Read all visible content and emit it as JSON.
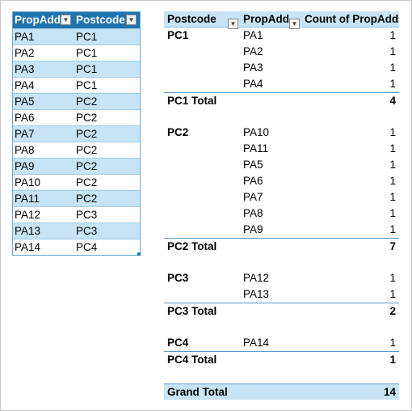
{
  "source_table": {
    "headers": [
      "PropAdd",
      "Postcode"
    ],
    "rows": [
      [
        "PA1",
        "PC1"
      ],
      [
        "PA2",
        "PC1"
      ],
      [
        "PA3",
        "PC1"
      ],
      [
        "PA4",
        "PC1"
      ],
      [
        "PA5",
        "PC2"
      ],
      [
        "PA6",
        "PC2"
      ],
      [
        "PA7",
        "PC2"
      ],
      [
        "PA8",
        "PC2"
      ],
      [
        "PA9",
        "PC2"
      ],
      [
        "PA10",
        "PC2"
      ],
      [
        "PA11",
        "PC2"
      ],
      [
        "PA12",
        "PC3"
      ],
      [
        "PA13",
        "PC3"
      ],
      [
        "PA14",
        "PC4"
      ]
    ]
  },
  "pivot": {
    "headers": {
      "postcode": "Postcode",
      "propadd": "PropAdd",
      "count": "Count of PropAdd"
    },
    "groups": [
      {
        "postcode": "PC1",
        "items": [
          {
            "propadd": "PA1",
            "count": "1"
          },
          {
            "propadd": "PA2",
            "count": "1"
          },
          {
            "propadd": "PA3",
            "count": "1"
          },
          {
            "propadd": "PA4",
            "count": "1"
          }
        ],
        "total_label": "PC1 Total",
        "total": "4"
      },
      {
        "postcode": "PC2",
        "items": [
          {
            "propadd": "PA10",
            "count": "1"
          },
          {
            "propadd": "PA11",
            "count": "1"
          },
          {
            "propadd": "PA5",
            "count": "1"
          },
          {
            "propadd": "PA6",
            "count": "1"
          },
          {
            "propadd": "PA7",
            "count": "1"
          },
          {
            "propadd": "PA8",
            "count": "1"
          },
          {
            "propadd": "PA9",
            "count": "1"
          }
        ],
        "total_label": "PC2 Total",
        "total": "7"
      },
      {
        "postcode": "PC3",
        "items": [
          {
            "propadd": "PA12",
            "count": "1"
          },
          {
            "propadd": "PA13",
            "count": "1"
          }
        ],
        "total_label": "PC3 Total",
        "total": "2"
      },
      {
        "postcode": "PC4",
        "items": [
          {
            "propadd": "PA14",
            "count": "1"
          }
        ],
        "total_label": "PC4 Total",
        "total": "1"
      }
    ],
    "grand_total_label": "Grand Total",
    "grand_total": "14"
  },
  "icons": {
    "filter": "dropdown-arrow-icon"
  },
  "colors": {
    "header_fill": "#1f74b0",
    "band_fill": "#c6e4f5",
    "border": "#6fa8d8"
  }
}
